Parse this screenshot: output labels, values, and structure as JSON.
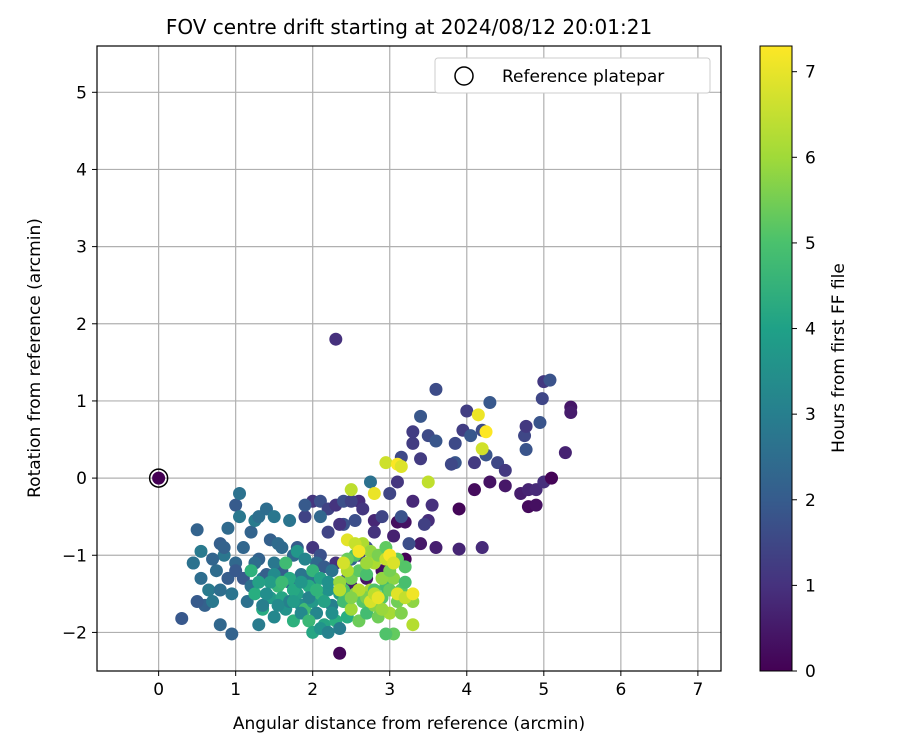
{
  "chart_data": {
    "type": "scatter",
    "title": "FOV centre drift starting at 2024/08/12 20:01:21",
    "xlabel": "Angular distance from reference (arcmin)",
    "ylabel": "Rotation from reference (arcmin)",
    "xlim": [
      -0.8,
      7.3
    ],
    "ylim": [
      -2.5,
      5.6
    ],
    "xticks": [
      0,
      1,
      2,
      3,
      4,
      5,
      6,
      7
    ],
    "yticks": [
      -2,
      -1,
      0,
      1,
      2,
      3,
      4,
      5
    ],
    "grid": true,
    "legend": {
      "placement": "top-right",
      "entries": [
        "Reference platepar"
      ]
    },
    "colorbar": {
      "label": "Hours from first FF file",
      "colormap": "viridis",
      "range": [
        0,
        7.3
      ],
      "ticks": [
        0,
        1,
        2,
        3,
        4,
        5,
        6,
        7
      ]
    },
    "reference_point": {
      "x": 0,
      "y": 0
    },
    "series": [
      {
        "hours_range": [
          0,
          1
        ],
        "points": [
          [
            0,
            0
          ],
          [
            2.35,
            -2.27
          ],
          [
            3.1,
            -0.57
          ],
          [
            3.2,
            -0.57
          ],
          [
            3.4,
            -0.85
          ],
          [
            3.6,
            -0.9
          ],
          [
            3.9,
            -0.92
          ],
          [
            4.2,
            -0.9
          ],
          [
            3.55,
            -0.35
          ],
          [
            3.9,
            -0.4
          ],
          [
            4.1,
            -0.15
          ],
          [
            4.3,
            -0.05
          ],
          [
            4.5,
            -0.1
          ],
          [
            4.7,
            -0.2
          ],
          [
            4.8,
            -0.15
          ],
          [
            4.9,
            -0.15
          ],
          [
            5.0,
            -0.05
          ],
          [
            5.1,
            0.0
          ],
          [
            4.8,
            -0.37
          ],
          [
            4.9,
            -0.35
          ],
          [
            5.35,
            0.92
          ],
          [
            5.35,
            0.85
          ],
          [
            5.28,
            0.33
          ],
          [
            3.3,
            -0.3
          ],
          [
            3.5,
            -0.55
          ],
          [
            3.2,
            -1.05
          ],
          [
            3.0,
            -1.1
          ],
          [
            2.9,
            -1.2
          ],
          [
            2.7,
            -1.3
          ],
          [
            2.5,
            -1.4
          ],
          [
            3.05,
            -0.75
          ],
          [
            2.8,
            -0.55
          ],
          [
            2.6,
            -0.3
          ]
        ]
      },
      {
        "hours_range": [
          1,
          2
        ],
        "points": [
          [
            2.3,
            1.8
          ],
          [
            3.6,
            1.15
          ],
          [
            4.0,
            0.87
          ],
          [
            4.3,
            0.98
          ],
          [
            4.2,
            0.62
          ],
          [
            3.95,
            0.62
          ],
          [
            4.05,
            0.55
          ],
          [
            3.85,
            0.45
          ],
          [
            3.3,
            0.6
          ],
          [
            3.4,
            0.8
          ],
          [
            3.5,
            0.55
          ],
          [
            3.3,
            0.45
          ],
          [
            3.6,
            0.48
          ],
          [
            3.15,
            0.27
          ],
          [
            3.4,
            0.25
          ],
          [
            3.85,
            0.2
          ],
          [
            3.8,
            0.18
          ],
          [
            4.1,
            0.2
          ],
          [
            4.25,
            0.3
          ],
          [
            4.4,
            0.2
          ],
          [
            4.5,
            0.1
          ],
          [
            4.77,
            0.37
          ],
          [
            4.75,
            0.55
          ],
          [
            4.77,
            0.67
          ],
          [
            4.95,
            0.72
          ],
          [
            4.98,
            1.03
          ],
          [
            5.0,
            1.25
          ],
          [
            5.08,
            1.27
          ],
          [
            3.0,
            -0.2
          ],
          [
            3.1,
            -0.05
          ],
          [
            3.15,
            -0.5
          ],
          [
            2.9,
            -0.5
          ],
          [
            2.65,
            -0.4
          ],
          [
            2.4,
            -0.6
          ],
          [
            2.2,
            -0.7
          ],
          [
            2.0,
            -0.9
          ],
          [
            2.1,
            -1.0
          ],
          [
            1.9,
            -0.5
          ],
          [
            2.0,
            -0.3
          ],
          [
            2.1,
            -0.3
          ],
          [
            2.2,
            -0.4
          ],
          [
            2.3,
            -0.35
          ],
          [
            2.4,
            -0.3
          ],
          [
            2.5,
            -0.3
          ],
          [
            2.35,
            -0.6
          ],
          [
            2.55,
            -0.55
          ],
          [
            2.6,
            -0.9
          ],
          [
            2.8,
            -0.7
          ],
          [
            3.25,
            -0.85
          ],
          [
            3.45,
            -0.6
          ],
          [
            2.9,
            -1.0
          ],
          [
            2.7,
            -0.9
          ],
          [
            2.5,
            -1.05
          ],
          [
            2.3,
            -1.1
          ],
          [
            2.45,
            -1.3
          ],
          [
            2.6,
            -1.0
          ]
        ]
      },
      {
        "hours_range": [
          2,
          3
        ],
        "points": [
          [
            0.3,
            -1.82
          ],
          [
            0.45,
            -1.1
          ],
          [
            0.5,
            -0.67
          ],
          [
            0.55,
            -0.95
          ],
          [
            0.55,
            -1.3
          ],
          [
            0.6,
            -1.65
          ],
          [
            0.7,
            -1.6
          ],
          [
            0.75,
            -1.2
          ],
          [
            0.8,
            -0.85
          ],
          [
            0.85,
            -1.0
          ],
          [
            0.9,
            -0.65
          ],
          [
            0.9,
            -1.3
          ],
          [
            0.95,
            -1.5
          ],
          [
            1.0,
            -1.1
          ],
          [
            1.0,
            -0.35
          ],
          [
            1.05,
            -0.2
          ],
          [
            1.1,
            -0.9
          ],
          [
            1.1,
            -1.3
          ],
          [
            1.15,
            -1.6
          ],
          [
            1.2,
            -0.7
          ],
          [
            1.25,
            -0.55
          ],
          [
            1.3,
            -0.5
          ],
          [
            1.3,
            -1.05
          ],
          [
            1.35,
            -1.3
          ],
          [
            1.4,
            -0.4
          ],
          [
            1.45,
            -0.8
          ],
          [
            1.5,
            -0.5
          ],
          [
            1.55,
            -0.85
          ],
          [
            1.6,
            -1.2
          ],
          [
            1.7,
            -0.55
          ],
          [
            1.75,
            -1.0
          ],
          [
            1.8,
            -0.9
          ],
          [
            1.85,
            -1.25
          ],
          [
            0.8,
            -1.9
          ],
          [
            0.5,
            -1.6
          ],
          [
            0.45,
            -1.1
          ],
          [
            0.7,
            -1.05
          ],
          [
            1.0,
            -1.2
          ],
          [
            1.2,
            -1.4
          ],
          [
            0.95,
            -2.02
          ],
          [
            0.65,
            -1.45
          ],
          [
            0.8,
            -1.45
          ],
          [
            0.85,
            -0.9
          ],
          [
            1.05,
            -0.5
          ],
          [
            1.25,
            -1.1
          ],
          [
            1.4,
            -1.25
          ],
          [
            1.5,
            -1.1
          ],
          [
            1.6,
            -0.9
          ],
          [
            1.7,
            -1.35
          ],
          [
            2.0,
            -1.3
          ],
          [
            2.05,
            -1.1
          ],
          [
            2.15,
            -1.15
          ],
          [
            2.25,
            -1.2
          ],
          [
            2.1,
            -0.5
          ],
          [
            1.9,
            -0.35
          ],
          [
            2.75,
            -0.05
          ],
          [
            2.5,
            -1.05
          ]
        ]
      },
      {
        "hours_range": [
          3,
          5
        ],
        "points": [
          [
            1.3,
            -1.9
          ],
          [
            1.35,
            -1.7
          ],
          [
            1.45,
            -1.55
          ],
          [
            1.5,
            -1.8
          ],
          [
            1.55,
            -1.4
          ],
          [
            1.6,
            -1.55
          ],
          [
            1.65,
            -1.7
          ],
          [
            1.7,
            -1.6
          ],
          [
            1.75,
            -1.85
          ],
          [
            1.8,
            -1.5
          ],
          [
            1.85,
            -1.65
          ],
          [
            1.9,
            -1.7
          ],
          [
            1.95,
            -1.4
          ],
          [
            2.0,
            -1.6
          ],
          [
            2.05,
            -1.75
          ],
          [
            2.1,
            -1.5
          ],
          [
            2.15,
            -1.9
          ],
          [
            2.2,
            -1.45
          ],
          [
            2.25,
            -1.65
          ],
          [
            2.3,
            -1.85
          ],
          [
            2.35,
            -1.5
          ],
          [
            1.5,
            -1.25
          ],
          [
            1.65,
            -1.1
          ],
          [
            1.7,
            -1.3
          ],
          [
            1.8,
            -0.95
          ],
          [
            1.9,
            -1.05
          ],
          [
            2.0,
            -1.2
          ],
          [
            2.1,
            -1.3
          ],
          [
            2.2,
            -1.35
          ],
          [
            1.35,
            -1.65
          ],
          [
            1.25,
            -1.5
          ],
          [
            1.45,
            -1.35
          ],
          [
            1.55,
            -1.65
          ],
          [
            1.6,
            -1.35
          ],
          [
            1.75,
            -1.45
          ],
          [
            1.85,
            -1.35
          ],
          [
            1.95,
            -1.55
          ],
          [
            2.05,
            -1.45
          ],
          [
            2.15,
            -1.6
          ],
          [
            2.25,
            -1.75
          ],
          [
            2.35,
            -1.95
          ],
          [
            2.45,
            -1.8
          ],
          [
            1.75,
            -1.6
          ],
          [
            1.85,
            -1.75
          ],
          [
            1.95,
            -1.85
          ],
          [
            2.0,
            -2.0
          ],
          [
            2.1,
            -1.95
          ],
          [
            2.2,
            -2.0
          ],
          [
            1.2,
            -1.2
          ],
          [
            1.3,
            -1.35
          ],
          [
            1.4,
            -1.5
          ]
        ]
      },
      {
        "hours_range": [
          5,
          6.5
        ],
        "points": [
          [
            2.4,
            -1.6
          ],
          [
            2.5,
            -1.7
          ],
          [
            2.55,
            -1.5
          ],
          [
            2.6,
            -1.85
          ],
          [
            2.65,
            -1.6
          ],
          [
            2.7,
            -1.75
          ],
          [
            2.75,
            -1.45
          ],
          [
            2.8,
            -1.65
          ],
          [
            2.85,
            -1.8
          ],
          [
            2.9,
            -1.55
          ],
          [
            2.95,
            -1.4
          ],
          [
            3.0,
            -1.75
          ],
          [
            3.05,
            -1.3
          ],
          [
            3.1,
            -1.6
          ],
          [
            3.15,
            -1.45
          ],
          [
            3.2,
            -1.35
          ],
          [
            3.25,
            -1.55
          ],
          [
            3.3,
            -1.6
          ],
          [
            2.5,
            -1.3
          ],
          [
            2.6,
            -1.2
          ],
          [
            2.7,
            -1.25
          ],
          [
            2.8,
            -1.1
          ],
          [
            2.9,
            -1.3
          ],
          [
            3.0,
            -1.2
          ],
          [
            3.1,
            -1.05
          ],
          [
            2.55,
            -1.0
          ],
          [
            2.65,
            -0.85
          ],
          [
            2.75,
            -0.95
          ],
          [
            2.85,
            -1.0
          ],
          [
            2.95,
            -0.9
          ],
          [
            2.4,
            -1.45
          ],
          [
            2.45,
            -1.2
          ],
          [
            2.35,
            -1.35
          ],
          [
            2.7,
            -1.55
          ],
          [
            3.05,
            -2.02
          ],
          [
            2.95,
            -2.02
          ],
          [
            3.3,
            -1.9
          ],
          [
            2.9,
            -1.7
          ],
          [
            3.15,
            -1.75
          ],
          [
            3.0,
            -1.45
          ],
          [
            2.8,
            -1.45
          ],
          [
            2.6,
            -1.45
          ],
          [
            2.7,
            -1.1
          ],
          [
            2.5,
            -1.55
          ],
          [
            2.45,
            -1.05
          ],
          [
            3.2,
            -1.15
          ]
        ]
      },
      {
        "hours_range": [
          6.5,
          7.3
        ],
        "points": [
          [
            2.35,
            -1.45
          ],
          [
            2.45,
            -0.8
          ],
          [
            2.55,
            -0.85
          ],
          [
            2.6,
            -0.95
          ],
          [
            2.75,
            -1.6
          ],
          [
            2.8,
            -1.5
          ],
          [
            2.85,
            -1.55
          ],
          [
            2.95,
            -1.05
          ],
          [
            3.0,
            -1.0
          ],
          [
            3.05,
            -1.1
          ],
          [
            2.5,
            -0.15
          ],
          [
            2.8,
            -0.2
          ],
          [
            2.95,
            0.2
          ],
          [
            3.1,
            0.18
          ],
          [
            3.15,
            0.15
          ],
          [
            3.5,
            -0.05
          ],
          [
            4.15,
            0.82
          ],
          [
            4.2,
            0.38
          ],
          [
            4.25,
            0.6
          ],
          [
            3.1,
            -1.5
          ],
          [
            3.2,
            -1.55
          ],
          [
            3.3,
            -1.5
          ],
          [
            2.4,
            -1.1
          ]
        ]
      }
    ]
  }
}
